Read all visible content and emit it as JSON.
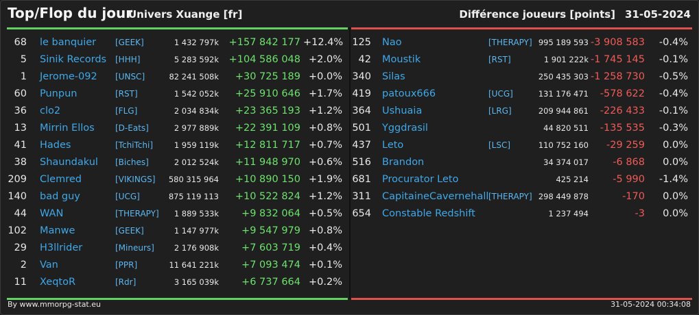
{
  "header": {
    "title": "Top/Flop du jour",
    "universe": "Univers Xuange [fr]",
    "metric": "Différence joueurs [points]",
    "date": "31-05-2024"
  },
  "top": [
    {
      "rank": "68",
      "name": "le banquier",
      "ally": "[GEEK]",
      "points": "1 432 797k",
      "diff": "+157 842 177",
      "pct": "+12.4%"
    },
    {
      "rank": "5",
      "name": "Sinik Records",
      "ally": "[HHH]",
      "points": "5 283 592k",
      "diff": "+104 586 048",
      "pct": "+2.0%"
    },
    {
      "rank": "1",
      "name": "Jerome-092",
      "ally": "[UNSC]",
      "points": "82 241 508k",
      "diff": "+30 725 189",
      "pct": "+0.0%"
    },
    {
      "rank": "60",
      "name": "Punpun",
      "ally": "[RST]",
      "points": "1 542 052k",
      "diff": "+25 910 646",
      "pct": "+1.7%"
    },
    {
      "rank": "36",
      "name": "clo2",
      "ally": "[FLG]",
      "points": "2 034 834k",
      "diff": "+23 365 193",
      "pct": "+1.2%"
    },
    {
      "rank": "13",
      "name": "Mirrin Ellos",
      "ally": "[D-Eats]",
      "points": "2 977 889k",
      "diff": "+22 391 109",
      "pct": "+0.8%"
    },
    {
      "rank": "41",
      "name": "Hades",
      "ally": "[TchiTchi]",
      "points": "1 959 119k",
      "diff": "+12 811 717",
      "pct": "+0.7%"
    },
    {
      "rank": "38",
      "name": "Shaundakul",
      "ally": "[Biches]",
      "points": "2 012 524k",
      "diff": "+11 948 970",
      "pct": "+0.6%"
    },
    {
      "rank": "209",
      "name": "Clemred",
      "ally": "[VIKINGS]",
      "points": "580 315 964",
      "diff": "+10 890 150",
      "pct": "+1.9%"
    },
    {
      "rank": "140",
      "name": "bad guy",
      "ally": "[UCG]",
      "points": "875 119 113",
      "diff": "+10 522 824",
      "pct": "+1.2%"
    },
    {
      "rank": "44",
      "name": "WAN",
      "ally": "[THERAPY]",
      "points": "1 889 533k",
      "diff": "+9 832 064",
      "pct": "+0.5%"
    },
    {
      "rank": "102",
      "name": "Manwe",
      "ally": "[GEEK]",
      "points": "1 147 977k",
      "diff": "+9 547 979",
      "pct": "+0.8%"
    },
    {
      "rank": "29",
      "name": "H3llrider",
      "ally": "[Mineurs]",
      "points": "2 176 908k",
      "diff": "+7 603 719",
      "pct": "+0.4%"
    },
    {
      "rank": "2",
      "name": "Van",
      "ally": "[PPR]",
      "points": "11 641 221k",
      "diff": "+7 093 474",
      "pct": "+0.1%"
    },
    {
      "rank": "11",
      "name": "XeqtoR",
      "ally": "[Rdr]",
      "points": "3 165 039k",
      "diff": "+6 737 664",
      "pct": "+0.2%"
    }
  ],
  "flop": [
    {
      "rank": "125",
      "name": "Nao",
      "ally": "[THERAPY]",
      "points": "995 189 593",
      "diff": "-3 908 583",
      "pct": "-0.4%"
    },
    {
      "rank": "42",
      "name": "Moustik",
      "ally": "[RST]",
      "points": "1 901 222k",
      "diff": "-1 745 145",
      "pct": "-0.1%"
    },
    {
      "rank": "340",
      "name": "Silas",
      "ally": "",
      "points": "250 435 303",
      "diff": "-1 258 730",
      "pct": "-0.5%"
    },
    {
      "rank": "419",
      "name": "patoux666",
      "ally": "[UCG]",
      "points": "131 176 471",
      "diff": "-578 622",
      "pct": "-0.4%"
    },
    {
      "rank": "364",
      "name": "Ushuaia",
      "ally": "[LRG]",
      "points": "209 944 861",
      "diff": "-226 433",
      "pct": "-0.1%"
    },
    {
      "rank": "501",
      "name": "Yggdrasil",
      "ally": "",
      "points": "44 820 511",
      "diff": "-135 535",
      "pct": "-0.3%"
    },
    {
      "rank": "437",
      "name": "Leto",
      "ally": "[LSC]",
      "points": "110 752 160",
      "diff": "-29 259",
      "pct": "0.0%"
    },
    {
      "rank": "516",
      "name": "Brandon",
      "ally": "",
      "points": "34 374 017",
      "diff": "-6 868",
      "pct": "0.0%"
    },
    {
      "rank": "681",
      "name": "Procurator Leto",
      "ally": "",
      "points": "425 214",
      "diff": "-5 990",
      "pct": "-1.4%"
    },
    {
      "rank": "311",
      "name": "CapitaineCavernehall",
      "ally": "[THERAPY]",
      "points": "298 449 878",
      "diff": "-170",
      "pct": "0.0%"
    },
    {
      "rank": "654",
      "name": "Constable Redshift",
      "ally": "",
      "points": "1 237 494",
      "diff": "-3",
      "pct": "0.0%"
    }
  ],
  "footer": {
    "credit": "By www.mmorpg-stat.eu",
    "timestamp": "31-05-2024 00:34:08"
  },
  "colors": {
    "positive": "#6de26d",
    "negative": "#ef5b57",
    "link": "#3fa8e8",
    "top_accent": "#63d263",
    "flop_accent": "#e0514d"
  }
}
